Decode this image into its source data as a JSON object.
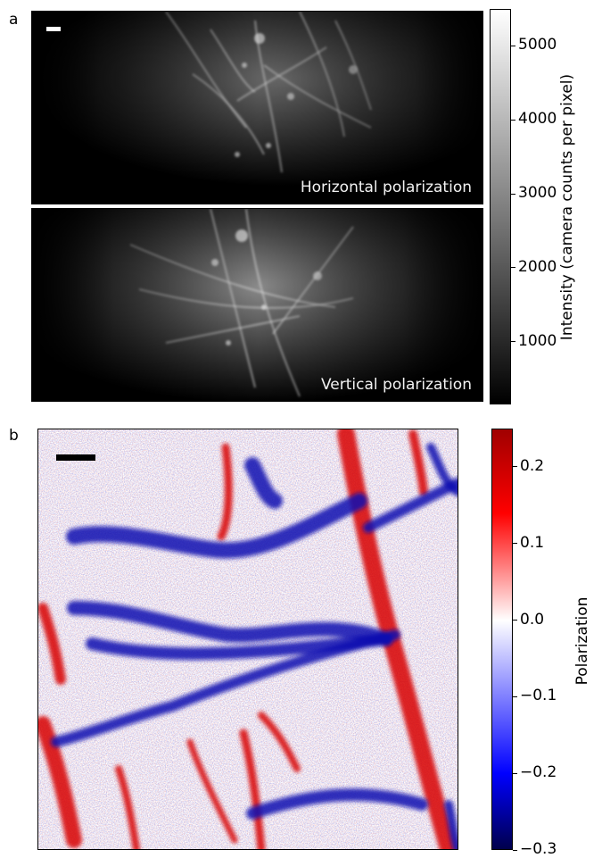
{
  "figure": {
    "panel_a_label": "a",
    "panel_b_label": "b"
  },
  "colors": {
    "background": "#000000",
    "filament": "#ffffff",
    "positive": "#d40000",
    "negative": "#1a1aa6",
    "zero": "#ffffff"
  },
  "chart_data": [
    {
      "type": "heatmap",
      "panel": "a",
      "images": [
        {
          "caption": "Horizontal polarization"
        },
        {
          "caption": "Vertical polarization"
        }
      ],
      "colorbar": {
        "label": "Intensity (camera counts per pixel)",
        "colormap": "gray",
        "ticks": [
          1000,
          2000,
          3000,
          4000,
          5000
        ],
        "range": [
          150,
          5500
        ]
      },
      "scale_bar_color": "white"
    },
    {
      "type": "heatmap",
      "panel": "b",
      "colorbar": {
        "label": "Polarization",
        "colormap": "seismic",
        "ticks": [
          0.2,
          0.1,
          0.0,
          -0.1,
          -0.2,
          -0.3
        ],
        "tick_labels": [
          "0.2",
          "0.1",
          "0.0",
          "−0.1",
          "−0.2",
          "−0.3"
        ],
        "range": [
          -0.3,
          0.25
        ]
      },
      "scale_bar_color": "black"
    }
  ]
}
